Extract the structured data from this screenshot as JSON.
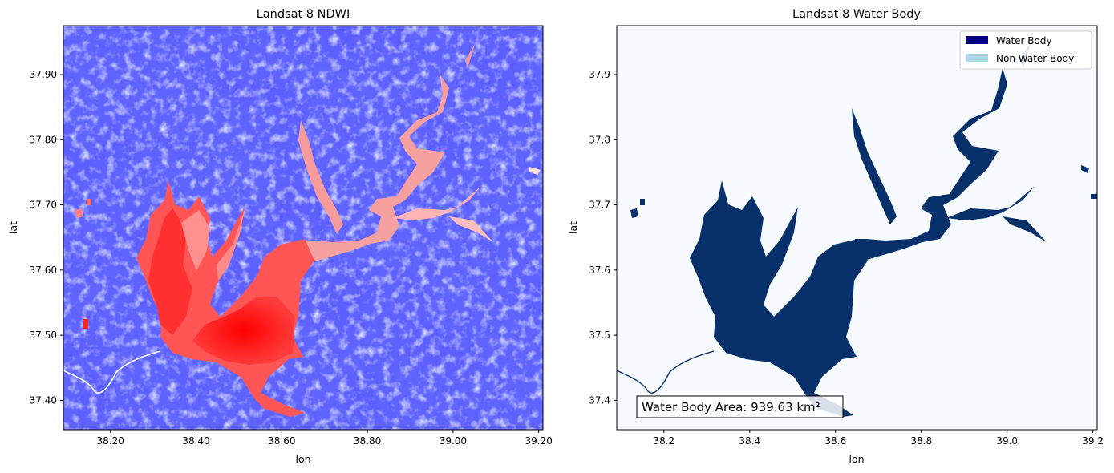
{
  "chart_data": [
    {
      "type": "heatmap",
      "title": "Landsat 8 NDWI",
      "xlabel": "lon",
      "ylabel": "lat",
      "xlim": [
        38.09,
        39.21
      ],
      "ylim": [
        37.355,
        37.975
      ],
      "xticks": [
        {
          "value": 38.2,
          "label": "38.20"
        },
        {
          "value": 38.4,
          "label": "38.40"
        },
        {
          "value": 38.6,
          "label": "38.60"
        },
        {
          "value": 38.8,
          "label": "38.80"
        },
        {
          "value": 39.0,
          "label": "39.00"
        },
        {
          "value": 39.2,
          "label": "39.20"
        }
      ],
      "yticks": [
        {
          "value": 37.4,
          "label": "37.40"
        },
        {
          "value": 37.5,
          "label": "37.50"
        },
        {
          "value": 37.6,
          "label": "37.60"
        },
        {
          "value": 37.7,
          "label": "37.70"
        },
        {
          "value": 37.8,
          "label": "37.80"
        },
        {
          "value": 37.9,
          "label": "37.90"
        }
      ],
      "colormap": {
        "low": "#2020ff",
        "mid": "#ffffff",
        "high": "#ff0000"
      },
      "background_color": "#5f64ff"
    },
    {
      "type": "heatmap",
      "title": "Landsat 8 Water Body",
      "xlabel": "lon",
      "ylabel": "lat",
      "xlim": [
        38.09,
        39.21
      ],
      "ylim": [
        37.355,
        37.975
      ],
      "xticks": [
        {
          "value": 38.2,
          "label": "38.2"
        },
        {
          "value": 38.4,
          "label": "38.4"
        },
        {
          "value": 38.6,
          "label": "38.6"
        },
        {
          "value": 38.8,
          "label": "38.8"
        },
        {
          "value": 39.0,
          "label": "39.0"
        },
        {
          "value": 39.2,
          "label": "39.2"
        }
      ],
      "yticks": [
        {
          "value": 37.4,
          "label": "37.4"
        },
        {
          "value": 37.5,
          "label": "37.5"
        },
        {
          "value": 37.6,
          "label": "37.6"
        },
        {
          "value": 37.7,
          "label": "37.7"
        },
        {
          "value": 37.8,
          "label": "37.8"
        },
        {
          "value": 37.9,
          "label": "37.9"
        }
      ],
      "legend": {
        "placement": "top-right",
        "entries": [
          {
            "label": "Water Body",
            "color": "#000080"
          },
          {
            "label": "Non-Water Body",
            "color": "#add8e6"
          }
        ]
      },
      "annotation": "Water Body Area: 939.63 km²",
      "water_color": "#08306b",
      "land_color": "#f7fbff"
    }
  ]
}
